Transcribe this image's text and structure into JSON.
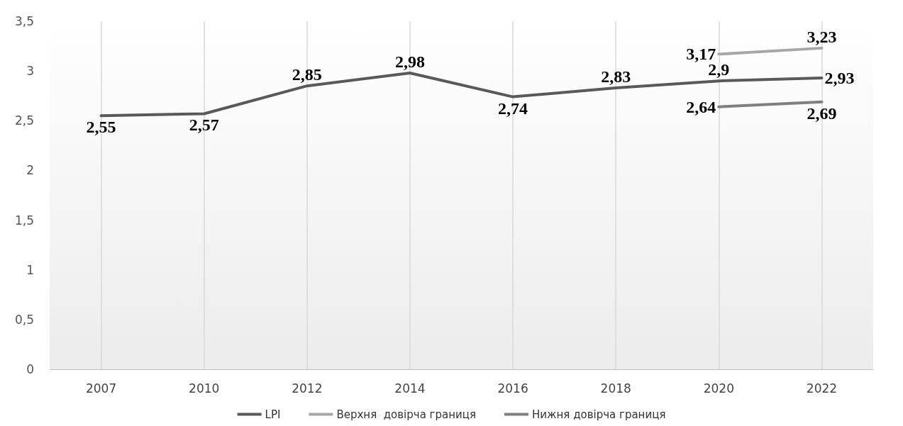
{
  "chart_data": {
    "type": "line",
    "categories": [
      "2007",
      "2010",
      "2012",
      "2014",
      "2016",
      "2018",
      "2020",
      "2022"
    ],
    "series": [
      {
        "name": "LPI",
        "color": "#595959",
        "values": [
          2.55,
          2.57,
          2.85,
          2.98,
          2.74,
          2.83,
          2.9,
          2.93
        ],
        "value_labels": [
          "2,55",
          "2,57",
          "2,85",
          "2,98",
          "2,74",
          "2,83",
          "2,9",
          "2,93"
        ]
      },
      {
        "name": "Верхня  довірча границя",
        "color": "#a6a6a6",
        "values": [
          null,
          null,
          null,
          null,
          null,
          null,
          3.17,
          3.23
        ],
        "value_labels": [
          null,
          null,
          null,
          null,
          null,
          null,
          "3,17",
          "3,23"
        ]
      },
      {
        "name": "Нижня довірча границя",
        "color": "#7f7f7f",
        "values": [
          null,
          null,
          null,
          null,
          null,
          null,
          2.64,
          2.69
        ],
        "value_labels": [
          null,
          null,
          null,
          null,
          null,
          null,
          "2,64",
          "2,69"
        ]
      }
    ],
    "ylim": [
      0,
      3.5
    ],
    "yticks": [
      0,
      {
        "value": 0.5,
        "label": "0,5"
      },
      1,
      {
        "value": 1.5,
        "label": "1,5"
      },
      2,
      {
        "value": 2.5,
        "label": "2,5"
      },
      3,
      {
        "value": 3.5,
        "label": "3,5"
      }
    ],
    "grid": "x",
    "legend": "bottom",
    "marker": "none",
    "line_style": "solid"
  }
}
